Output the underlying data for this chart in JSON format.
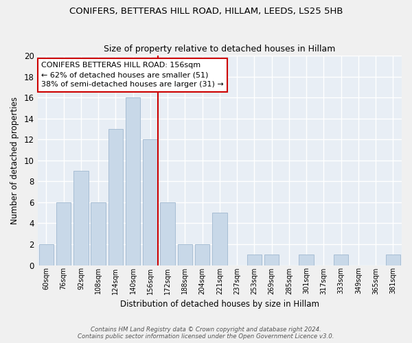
{
  "title1": "CONIFERS, BETTERAS HILL ROAD, HILLAM, LEEDS, LS25 5HB",
  "title2": "Size of property relative to detached houses in Hillam",
  "xlabel": "Distribution of detached houses by size in Hillam",
  "ylabel": "Number of detached properties",
  "categories": [
    "60sqm",
    "76sqm",
    "92sqm",
    "108sqm",
    "124sqm",
    "140sqm",
    "156sqm",
    "172sqm",
    "188sqm",
    "204sqm",
    "221sqm",
    "237sqm",
    "253sqm",
    "269sqm",
    "285sqm",
    "301sqm",
    "317sqm",
    "333sqm",
    "349sqm",
    "365sqm",
    "381sqm"
  ],
  "values": [
    2,
    6,
    9,
    6,
    13,
    16,
    12,
    6,
    2,
    2,
    5,
    0,
    1,
    1,
    0,
    1,
    0,
    1,
    0,
    0,
    1
  ],
  "bar_color": "#c8d8e8",
  "bar_edgecolor": "#a0b8d0",
  "highlight_index": 6,
  "highlight_line_color": "#cc0000",
  "ylim": [
    0,
    20
  ],
  "yticks": [
    0,
    2,
    4,
    6,
    8,
    10,
    12,
    14,
    16,
    18,
    20
  ],
  "annotation_text": "CONIFERS BETTERAS HILL ROAD: 156sqm\n← 62% of detached houses are smaller (51)\n38% of semi-detached houses are larger (31) →",
  "annotation_box_color": "#ffffff",
  "annotation_box_edgecolor": "#cc0000",
  "footer1": "Contains HM Land Registry data © Crown copyright and database right 2024.",
  "footer2": "Contains public sector information licensed under the Open Government Licence v3.0.",
  "background_color": "#e8eef5",
  "fig_background_color": "#f0f0f0",
  "grid_color": "#ffffff"
}
